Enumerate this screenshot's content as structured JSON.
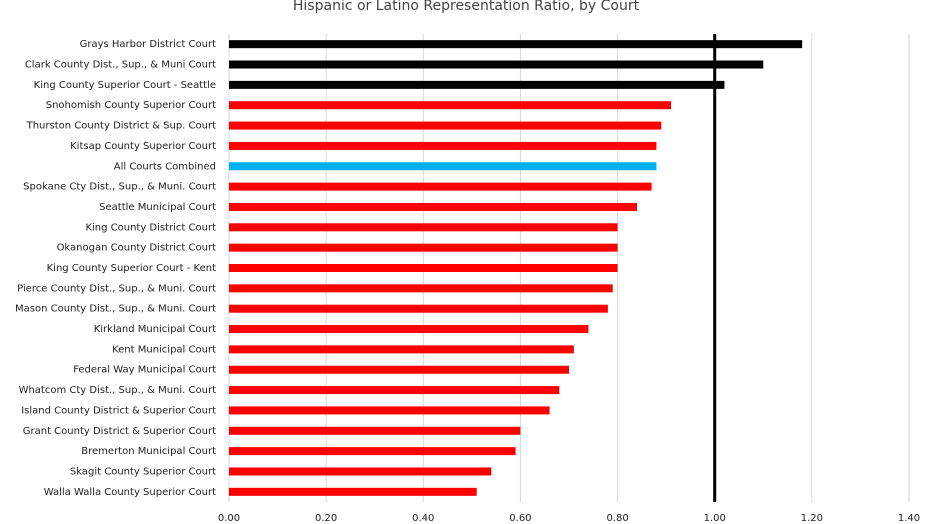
{
  "chart_data": {
    "type": "hbar",
    "title": "Hispanic or Latino Representation Ratio, by Court",
    "categories": [
      "Grays Harbor District Court",
      "Clark County Dist., Sup., & Muni Court",
      "King County Superior Court - Seattle",
      "Snohomish County Superior Court",
      "Thurston County District & Sup. Court",
      "Kitsap County Superior Court",
      "All Courts Combined",
      "Spokane Cty Dist., Sup., & Muni. Court",
      "Seattle Municipal Court",
      "King County District Court",
      "Okanogan County District Court",
      "King County Superior Court - Kent",
      "Pierce County Dist., Sup., & Muni. Court",
      "Mason County Dist., Sup., & Muni. Court",
      "Kirkland Municipal Court",
      "Kent Municipal Court",
      "Federal Way Municipal Court",
      "Whatcom Cty Dist., Sup., & Muni. Court",
      "Island County District & Superior Court",
      "Grant County District & Superior Court",
      "Bremerton Municipal Court",
      "Skagit County Superior Court",
      "Walla Walla County Superior Court"
    ],
    "values": [
      1.18,
      1.1,
      1.02,
      0.91,
      0.89,
      0.88,
      0.88,
      0.87,
      0.84,
      0.8,
      0.8,
      0.8,
      0.79,
      0.78,
      0.74,
      0.71,
      0.7,
      0.68,
      0.66,
      0.6,
      0.59,
      0.54,
      0.51
    ],
    "colors": [
      "#000000",
      "#000000",
      "#000000",
      "#ff0000",
      "#ff0000",
      "#ff0000",
      "#00b0f0",
      "#ff0000",
      "#ff0000",
      "#ff0000",
      "#ff0000",
      "#ff0000",
      "#ff0000",
      "#ff0000",
      "#ff0000",
      "#ff0000",
      "#ff0000",
      "#ff0000",
      "#ff0000",
      "#ff0000",
      "#ff0000",
      "#ff0000",
      "#ff0000"
    ],
    "reference_line": 1,
    "xlim": [
      0,
      1.4
    ],
    "xticks": [
      {
        "value": 0,
        "label": "0.00"
      },
      {
        "value": 0.2,
        "label": "0.20"
      },
      {
        "value": 0.4,
        "label": "0.40"
      },
      {
        "value": 0.6,
        "label": "0.60"
      },
      {
        "value": 0.8,
        "label": "0.80"
      },
      {
        "value": 1,
        "label": "1.00"
      },
      {
        "value": 1.2,
        "label": "1.20"
      },
      {
        "value": 1.4,
        "label": "1.40"
      }
    ],
    "grid": true
  }
}
